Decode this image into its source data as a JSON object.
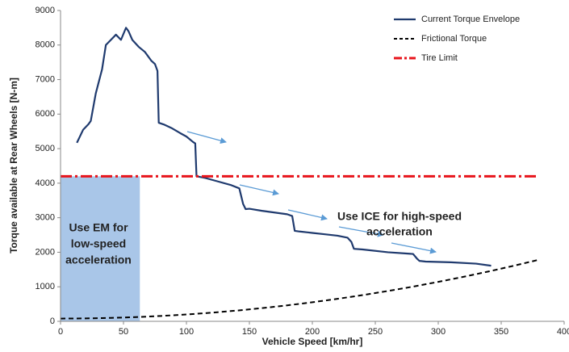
{
  "chart_data": {
    "type": "line",
    "xlabel": "Vehicle Speed [km/hr]",
    "ylabel": "Torque available at Rear Wheels [N-m]",
    "xlim": [
      0,
      400
    ],
    "xticks": [
      0,
      50,
      100,
      150,
      200,
      250,
      300,
      350,
      400
    ],
    "ylim": [
      0,
      9000
    ],
    "yticks": [
      0,
      1000,
      2000,
      3000,
      4000,
      5000,
      6000,
      7000,
      8000,
      9000
    ],
    "grid": false,
    "legend": "upper right",
    "series": [
      {
        "name": "Current Torque Envelope",
        "color": "#1f3a6e",
        "style": "solid",
        "x": [
          13,
          18,
          22,
          24,
          28,
          33,
          36,
          40,
          44,
          48,
          52,
          54,
          57,
          62,
          67,
          72,
          75,
          77,
          78,
          82,
          88,
          95,
          100,
          105,
          107,
          108,
          115,
          125,
          135,
          142,
          145,
          147,
          150,
          160,
          170,
          180,
          184,
          186,
          190,
          200,
          210,
          220,
          228,
          231,
          233,
          240,
          260,
          280,
          283,
          285,
          290,
          310,
          330,
          342
        ],
        "values": [
          5170,
          5550,
          5700,
          5800,
          6600,
          7300,
          8000,
          8150,
          8300,
          8150,
          8500,
          8400,
          8150,
          7950,
          7800,
          7550,
          7450,
          7250,
          5750,
          5700,
          5600,
          5450,
          5350,
          5200,
          5150,
          4200,
          4150,
          4050,
          3950,
          3850,
          3400,
          3250,
          3260,
          3200,
          3150,
          3100,
          3050,
          2620,
          2600,
          2560,
          2520,
          2480,
          2420,
          2300,
          2100,
          2080,
          2000,
          1950,
          1820,
          1750,
          1730,
          1710,
          1670,
          1610
        ]
      },
      {
        "name": "Frictional Torque",
        "color": "#000000",
        "style": "dashed",
        "x": [
          0,
          20,
          40,
          60,
          80,
          100,
          120,
          140,
          160,
          180,
          200,
          220,
          240,
          260,
          280,
          300,
          320,
          340,
          360,
          380
        ],
        "values": [
          80,
          85,
          99,
          122,
          156,
          198,
          250,
          311,
          382,
          462,
          552,
          651,
          760,
          878,
          1005,
          1142,
          1288,
          1444,
          1609,
          1784
        ]
      },
      {
        "name": "Tire Limit",
        "color": "#e8141b",
        "style": "dashdot",
        "x": [
          0,
          380
        ],
        "values": [
          4200,
          4200
        ]
      }
    ],
    "shaded_region": {
      "x": [
        0,
        63
      ],
      "y": [
        0,
        4200
      ],
      "color": "#a9c6e8"
    },
    "annotations": [
      {
        "lines": [
          "Use EM for",
          "low-speed",
          "acceleration"
        ]
      },
      {
        "lines": [
          "Use ICE for high-speed",
          "acceleration"
        ]
      }
    ]
  }
}
